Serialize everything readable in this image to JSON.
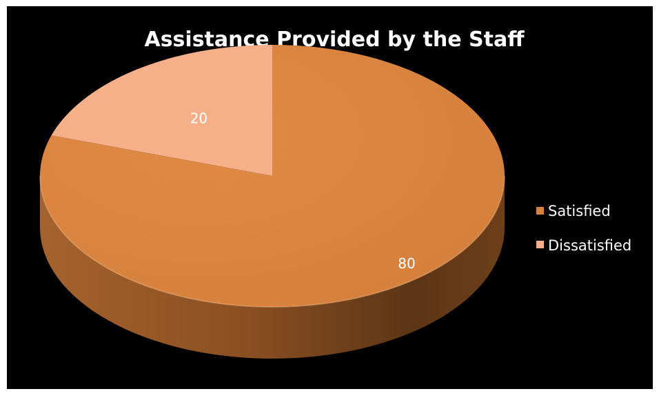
{
  "chart_data": {
    "type": "pie",
    "title": "Assistance Provided by the Staff",
    "categories": [
      "Satisfied",
      "Dissatisfied"
    ],
    "values": [
      80,
      20
    ],
    "data_labels": [
      "80",
      "20"
    ],
    "colors": [
      "#d9823f",
      "#f5b08a"
    ],
    "legend_position": "right",
    "style": "3d-pie"
  }
}
